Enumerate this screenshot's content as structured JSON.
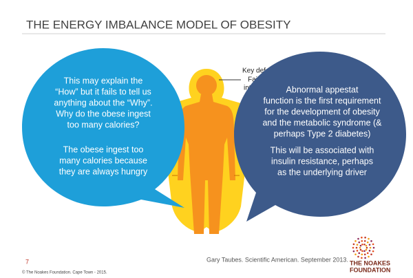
{
  "header": {
    "title": "THE ENERGY IMBALANCE MODEL OF OBESITY"
  },
  "left_bubble": {
    "paragraphs": [
      [
        "This may explain the",
        "“How” but it fails to tell us",
        "anything about the “Why”.",
        "Why do the obese ingest",
        "too many calories?"
      ],
      [
        "The obese ingest too",
        "many calories because",
        "they are always hungry"
      ]
    ]
  },
  "right_bubble": {
    "paragraphs": [
      [
        "Abnormal appestat",
        "function is the first requirement",
        "for the development of obesity",
        "and the metabolic syndrome (&",
        "perhaps Type 2 diabetes)"
      ],
      [
        "This will be associated with",
        "insulin resistance, perhaps",
        "as the underlying driver"
      ]
    ]
  },
  "figure_note": [
    "Key defe",
    "Failu",
    "inta"
  ],
  "citation": "Gary Taubes. Scientific American. September 2013.",
  "page_number": "7",
  "footer": "© The Noakes Foundation. Cape Town - 2015.",
  "logo": {
    "line1": "THE NOAKES",
    "line2": "FOUNDATION"
  }
}
